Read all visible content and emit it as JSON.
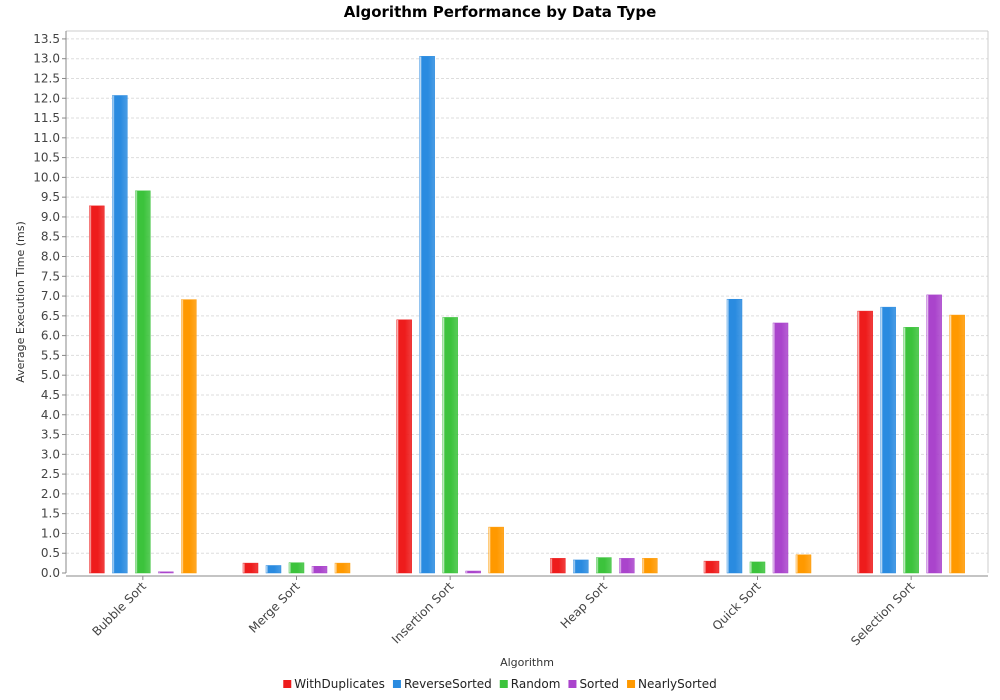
{
  "chart_data": {
    "type": "bar",
    "title": "Algorithm Performance by Data Type",
    "xlabel": "Algorithm",
    "ylabel": "Average Execution Time (ms)",
    "ylim": [
      0,
      13.7
    ],
    "yticks": [
      "0.0",
      "0.5",
      "1.0",
      "1.5",
      "2.0",
      "2.5",
      "3.0",
      "3.5",
      "4.0",
      "4.5",
      "5.0",
      "5.5",
      "6.0",
      "6.5",
      "7.0",
      "7.5",
      "8.0",
      "8.5",
      "9.0",
      "9.5",
      "10.0",
      "10.5",
      "11.0",
      "11.5",
      "12.0",
      "12.5",
      "13.0",
      "13.5"
    ],
    "grid": true,
    "legend_position": "bottom",
    "categories": [
      "Bubble Sort",
      "Merge Sort",
      "Insertion Sort",
      "Heap Sort",
      "Quick Sort",
      "Selection Sort"
    ],
    "series": [
      {
        "name": "WithDuplicates",
        "color": "#ee1c1c",
        "values": [
          9.28,
          0.25,
          6.4,
          0.37,
          0.3,
          6.62
        ]
      },
      {
        "name": "ReverseSorted",
        "color": "#2a8be0",
        "values": [
          12.07,
          0.19,
          13.06,
          0.33,
          6.92,
          6.72
        ]
      },
      {
        "name": "Random",
        "color": "#3cc33c",
        "values": [
          9.66,
          0.26,
          6.46,
          0.39,
          0.28,
          6.21
        ]
      },
      {
        "name": "Sorted",
        "color": "#aa44cc",
        "values": [
          0.03,
          0.17,
          0.05,
          0.37,
          6.32,
          7.03
        ]
      },
      {
        "name": "NearlySorted",
        "color": "#ff9900",
        "values": [
          6.91,
          0.25,
          1.16,
          0.37,
          0.46,
          6.52
        ]
      }
    ]
  }
}
